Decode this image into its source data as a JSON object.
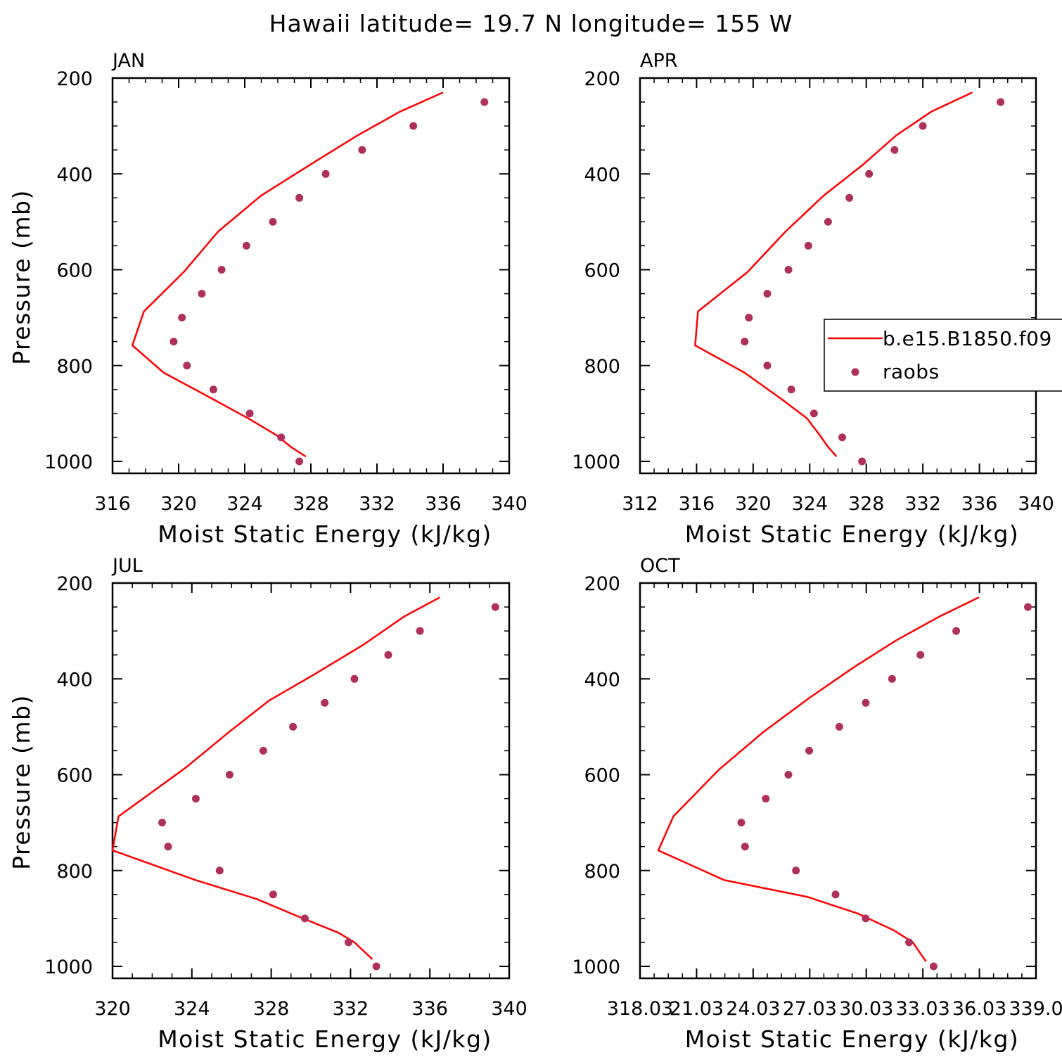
{
  "figure": {
    "title": "Hawaii  latitude= 19.7 N longitude= 155 W"
  },
  "colors": {
    "model": "#ff0000",
    "obs": "#b0305c",
    "axis": "#000000",
    "background": "#ffffff"
  },
  "legend": {
    "model_label": "b.e15.B1850.f09",
    "obs_label": "raobs",
    "placement": "right, inside APR panel, clipped at figure edge"
  },
  "chart_data": [
    {
      "type": "line",
      "panel": "JAN",
      "title": "JAN",
      "xlabel": "Moist Static Energy (kJ/kg)",
      "ylabel": "Pressure (mb)",
      "xlim": [
        316,
        340
      ],
      "ylim": [
        1025,
        200
      ],
      "x_ticks": [
        "316",
        "320",
        "324",
        "328",
        "332",
        "336",
        "340"
      ],
      "y_ticks": [
        "200",
        "400",
        "600",
        "800",
        "1000"
      ],
      "series": [
        {
          "name": "b.e15.B1850.f09",
          "kind": "line",
          "points": [
            [
              336.0,
              230
            ],
            [
              333.4,
              270
            ],
            [
              330.8,
              320
            ],
            [
              328.0,
              380
            ],
            [
              325.0,
              445
            ],
            [
              322.4,
              520
            ],
            [
              320.3,
              605
            ],
            [
              317.9,
              687
            ],
            [
              317.2,
              758
            ],
            [
              319.1,
              815
            ],
            [
              321.8,
              865
            ],
            [
              324.2,
              910
            ],
            [
              325.9,
              945
            ],
            [
              326.8,
              970
            ],
            [
              327.7,
              990
            ]
          ]
        },
        {
          "name": "raobs",
          "kind": "scatter",
          "points": [
            [
              338.5,
              250
            ],
            [
              334.2,
              300
            ],
            [
              331.1,
              350
            ],
            [
              328.9,
              400
            ],
            [
              327.3,
              450
            ],
            [
              325.7,
              500
            ],
            [
              324.1,
              550
            ],
            [
              322.6,
              600
            ],
            [
              321.4,
              650
            ],
            [
              320.2,
              700
            ],
            [
              319.7,
              750
            ],
            [
              320.5,
              800
            ],
            [
              322.1,
              850
            ],
            [
              324.3,
              900
            ],
            [
              326.2,
              950
            ],
            [
              327.3,
              1000
            ]
          ]
        }
      ]
    },
    {
      "type": "line",
      "panel": "APR",
      "title": "APR",
      "xlabel": "Moist Static Energy (kJ/kg)",
      "ylabel": "",
      "xlim": [
        312,
        340
      ],
      "ylim": [
        1025,
        200
      ],
      "x_ticks": [
        "312",
        "316",
        "320",
        "324",
        "328",
        "332",
        "336",
        "340"
      ],
      "y_ticks": [
        "200",
        "400",
        "600",
        "800",
        "1000"
      ],
      "series": [
        {
          "name": "b.e15.B1850.f09",
          "kind": "line",
          "points": [
            [
              335.5,
              230
            ],
            [
              332.6,
              270
            ],
            [
              330.1,
              320
            ],
            [
              327.8,
              380
            ],
            [
              325.0,
              445
            ],
            [
              322.3,
              520
            ],
            [
              319.6,
              605
            ],
            [
              316.1,
              687
            ],
            [
              315.9,
              758
            ],
            [
              319.4,
              815
            ],
            [
              322.0,
              870
            ],
            [
              323.8,
              910
            ],
            [
              324.7,
              945
            ],
            [
              325.3,
              970
            ],
            [
              325.9,
              990
            ]
          ]
        },
        {
          "name": "raobs",
          "kind": "scatter",
          "points": [
            [
              337.5,
              250
            ],
            [
              332.0,
              300
            ],
            [
              330.0,
              350
            ],
            [
              328.2,
              400
            ],
            [
              326.8,
              450
            ],
            [
              325.3,
              500
            ],
            [
              323.9,
              550
            ],
            [
              322.5,
              600
            ],
            [
              321.0,
              650
            ],
            [
              319.7,
              700
            ],
            [
              319.4,
              750
            ],
            [
              321.0,
              800
            ],
            [
              322.7,
              850
            ],
            [
              324.3,
              900
            ],
            [
              326.3,
              950
            ],
            [
              327.7,
              1000
            ]
          ]
        }
      ]
    },
    {
      "type": "line",
      "panel": "JUL",
      "title": "JUL",
      "xlabel": "Moist Static Energy (kJ/kg)",
      "ylabel": "Pressure (mb)",
      "xlim": [
        320,
        340
      ],
      "ylim": [
        1025,
        200
      ],
      "x_ticks": [
        "320",
        "324",
        "328",
        "332",
        "336",
        "340"
      ],
      "y_ticks": [
        "200",
        "400",
        "600",
        "800",
        "1000"
      ],
      "series": [
        {
          "name": "b.e15.B1850.f09",
          "kind": "line",
          "points": [
            [
              336.5,
              230
            ],
            [
              334.7,
              270
            ],
            [
              332.6,
              330
            ],
            [
              330.2,
              390
            ],
            [
              327.9,
              445
            ],
            [
              325.9,
              510
            ],
            [
              323.7,
              585
            ],
            [
              320.3,
              687
            ],
            [
              320.0,
              758
            ],
            [
              324.2,
              820
            ],
            [
              327.3,
              860
            ],
            [
              329.6,
              900
            ],
            [
              331.4,
              930
            ],
            [
              332.2,
              950
            ],
            [
              333.1,
              985
            ]
          ]
        },
        {
          "name": "raobs",
          "kind": "scatter",
          "points": [
            [
              339.3,
              250
            ],
            [
              335.5,
              300
            ],
            [
              333.9,
              350
            ],
            [
              332.2,
              400
            ],
            [
              330.7,
              450
            ],
            [
              329.1,
              500
            ],
            [
              327.6,
              550
            ],
            [
              325.9,
              600
            ],
            [
              324.2,
              650
            ],
            [
              322.5,
              700
            ],
            [
              322.8,
              750
            ],
            [
              325.4,
              800
            ],
            [
              328.1,
              850
            ],
            [
              329.7,
              900
            ],
            [
              331.9,
              950
            ],
            [
              333.3,
              1000
            ]
          ]
        }
      ]
    },
    {
      "type": "line",
      "panel": "OCT",
      "title": "OCT",
      "xlabel": "Moist Static Energy (kJ/kg)",
      "ylabel": "",
      "xlim": [
        318.03,
        339.03
      ],
      "ylim": [
        1025,
        200
      ],
      "x_ticks": [
        "318.03",
        "21.03",
        "24.03",
        "27.03",
        "30.03",
        "33.03",
        "36.03",
        "339.0"
      ],
      "y_ticks": [
        "200",
        "400",
        "600",
        "800",
        "1000"
      ],
      "series": [
        {
          "name": "b.e15.B1850.f09",
          "kind": "line",
          "points": [
            [
              336.0,
              230
            ],
            [
              333.9,
              270
            ],
            [
              331.6,
              320
            ],
            [
              329.4,
              375
            ],
            [
              327.0,
              440
            ],
            [
              324.6,
              510
            ],
            [
              322.2,
              590
            ],
            [
              319.8,
              687
            ],
            [
              319.0,
              758
            ],
            [
              322.5,
              820
            ],
            [
              326.9,
              855
            ],
            [
              329.6,
              890
            ],
            [
              331.5,
              925
            ],
            [
              332.5,
              950
            ],
            [
              333.2,
              990
            ]
          ]
        },
        {
          "name": "raobs",
          "kind": "scatter",
          "points": [
            [
              338.6,
              250
            ],
            [
              334.8,
              300
            ],
            [
              332.9,
              350
            ],
            [
              331.4,
              400
            ],
            [
              330.0,
              450
            ],
            [
              328.6,
              500
            ],
            [
              327.0,
              550
            ],
            [
              325.9,
              600
            ],
            [
              324.7,
              650
            ],
            [
              323.4,
              700
            ],
            [
              323.6,
              750
            ],
            [
              326.3,
              800
            ],
            [
              328.4,
              850
            ],
            [
              330.0,
              900
            ],
            [
              332.3,
              950
            ],
            [
              333.6,
              1000
            ]
          ]
        }
      ]
    }
  ]
}
